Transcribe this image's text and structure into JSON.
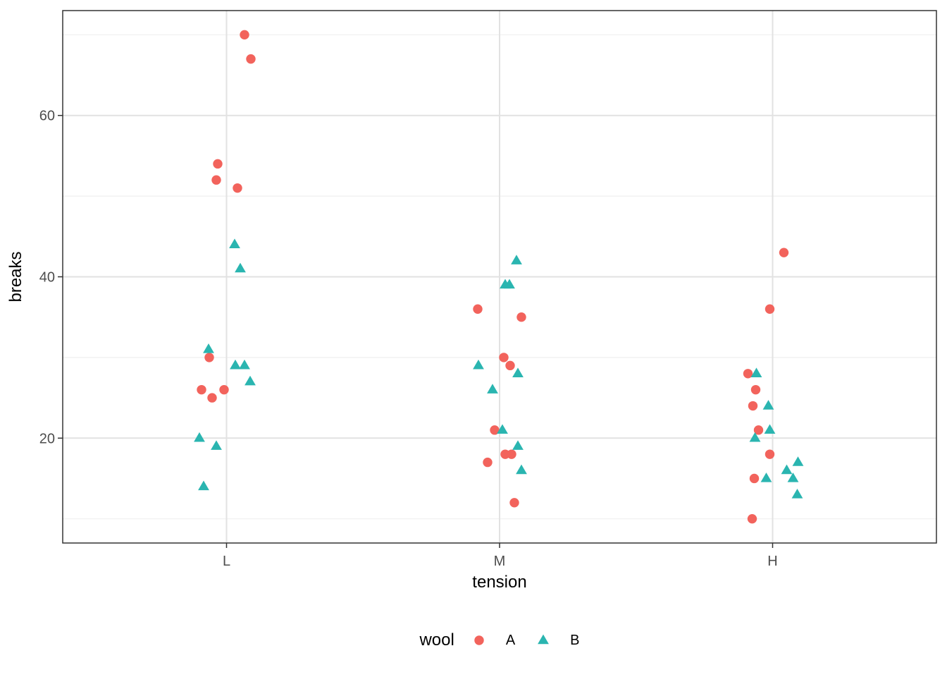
{
  "chart_data": {
    "type": "scatter",
    "title": "",
    "xlabel": "tension",
    "ylabel": "breaks",
    "x_categories": [
      "L",
      "M",
      "H"
    ],
    "x_tick_labels": [
      "L",
      "M",
      "H"
    ],
    "y_major_ticks": [
      20,
      40,
      60
    ],
    "y_tick_labels": [
      "20",
      "40",
      "60"
    ],
    "y_minor_ticks": [
      10,
      30,
      50,
      70
    ],
    "ylim": [
      7,
      73
    ],
    "grid": "horizontal major+minor, vertical major at category centers, no legend box",
    "legend": {
      "title": "wool",
      "position": "bottom",
      "entries": [
        {
          "label": "A",
          "shape": "circle",
          "color": "#F2635C"
        },
        {
          "label": "B",
          "shape": "triangle",
          "color": "#2AB5B0"
        }
      ]
    },
    "series": [
      {
        "name": "A",
        "shape": "circle",
        "color": "#F2635C",
        "points": [
          {
            "tension": "L",
            "breaks": 26,
            "jx": -35.5
          },
          {
            "tension": "L",
            "breaks": 30,
            "jx": -24.5
          },
          {
            "tension": "L",
            "breaks": 54,
            "jx": -12.5
          },
          {
            "tension": "L",
            "breaks": 25,
            "jx": -20.5
          },
          {
            "tension": "L",
            "breaks": 70,
            "jx": 25.5
          },
          {
            "tension": "L",
            "breaks": 52,
            "jx": -14.5
          },
          {
            "tension": "L",
            "breaks": 51,
            "jx": 15.5
          },
          {
            "tension": "L",
            "breaks": 26,
            "jx": -3.5
          },
          {
            "tension": "L",
            "breaks": 67,
            "jx": 34.5
          },
          {
            "tension": "M",
            "breaks": 18,
            "jx": 8
          },
          {
            "tension": "M",
            "breaks": 21,
            "jx": -7
          },
          {
            "tension": "M",
            "breaks": 29,
            "jx": 15
          },
          {
            "tension": "M",
            "breaks": 17,
            "jx": -17
          },
          {
            "tension": "M",
            "breaks": 12,
            "jx": 21
          },
          {
            "tension": "M",
            "breaks": 18,
            "jx": 17
          },
          {
            "tension": "M",
            "breaks": 35,
            "jx": 31
          },
          {
            "tension": "M",
            "breaks": 30,
            "jx": 6
          },
          {
            "tension": "M",
            "breaks": 36,
            "jx": -31
          },
          {
            "tension": "H",
            "breaks": 36,
            "jx": -4
          },
          {
            "tension": "H",
            "breaks": 21,
            "jx": -20
          },
          {
            "tension": "H",
            "breaks": 24,
            "jx": -28
          },
          {
            "tension": "H",
            "breaks": 18,
            "jx": -4
          },
          {
            "tension": "H",
            "breaks": 10,
            "jx": -29
          },
          {
            "tension": "H",
            "breaks": 43,
            "jx": 16
          },
          {
            "tension": "H",
            "breaks": 28,
            "jx": -35
          },
          {
            "tension": "H",
            "breaks": 15,
            "jx": -26
          },
          {
            "tension": "H",
            "breaks": 26,
            "jx": -24
          }
        ]
      },
      {
        "name": "B",
        "shape": "triangle",
        "color": "#2AB5B0",
        "points": [
          {
            "tension": "L",
            "breaks": 27,
            "jx": 33.5
          },
          {
            "tension": "L",
            "breaks": 14,
            "jx": -32.5
          },
          {
            "tension": "L",
            "breaks": 29,
            "jx": 12.5
          },
          {
            "tension": "L",
            "breaks": 19,
            "jx": -14.5
          },
          {
            "tension": "L",
            "breaks": 29,
            "jx": 25.5
          },
          {
            "tension": "L",
            "breaks": 31,
            "jx": -25.5
          },
          {
            "tension": "L",
            "breaks": 41,
            "jx": 19.5
          },
          {
            "tension": "L",
            "breaks": 20,
            "jx": -38.5
          },
          {
            "tension": "L",
            "breaks": 44,
            "jx": 11.5
          },
          {
            "tension": "M",
            "breaks": 42,
            "jx": 24
          },
          {
            "tension": "M",
            "breaks": 26,
            "jx": -10
          },
          {
            "tension": "M",
            "breaks": 19,
            "jx": 26
          },
          {
            "tension": "M",
            "breaks": 16,
            "jx": 31
          },
          {
            "tension": "M",
            "breaks": 39,
            "jx": 8
          },
          {
            "tension": "M",
            "breaks": 28,
            "jx": 26
          },
          {
            "tension": "M",
            "breaks": 21,
            "jx": 4
          },
          {
            "tension": "M",
            "breaks": 39,
            "jx": 14
          },
          {
            "tension": "M",
            "breaks": 29,
            "jx": -30
          },
          {
            "tension": "H",
            "breaks": 20,
            "jx": -25
          },
          {
            "tension": "H",
            "breaks": 21,
            "jx": -4
          },
          {
            "tension": "H",
            "breaks": 24,
            "jx": -6
          },
          {
            "tension": "H",
            "breaks": 17,
            "jx": 36
          },
          {
            "tension": "H",
            "breaks": 13,
            "jx": 35
          },
          {
            "tension": "H",
            "breaks": 15,
            "jx": -9
          },
          {
            "tension": "H",
            "breaks": 15,
            "jx": 29
          },
          {
            "tension": "H",
            "breaks": 16,
            "jx": 20
          },
          {
            "tension": "H",
            "breaks": 28,
            "jx": -23
          }
        ]
      }
    ]
  },
  "style": {
    "grid_major_color": "#E2E2E2",
    "grid_minor_color": "#EFEFEF",
    "panel_border_color": "#333333",
    "tick_color": "#333333",
    "tick_label_color": "#4D4D4D",
    "axis_title_color": "#000000",
    "background": "#FFFFFF"
  }
}
